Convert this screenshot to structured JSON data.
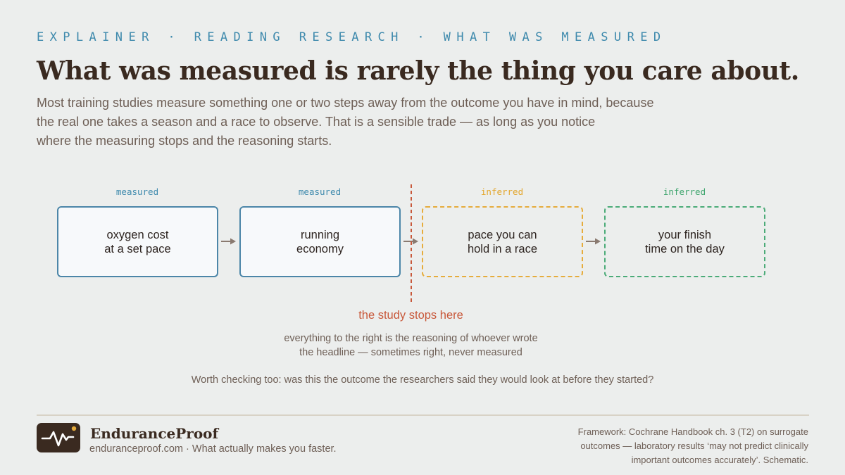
{
  "header": {
    "eyebrow": "EXPLAINER · READING RESEARCH · WHAT WAS MEASURED",
    "title": "What was measured is rarely the thing you care about.",
    "intro_lines": [
      "Most training studies measure something one or two steps away from the outcome you have in mind, because",
      "the real one takes a season and a race to observe. That is a sensible trade — as long as you notice",
      "where the measuring stops and the reasoning starts."
    ]
  },
  "diagram": {
    "nodes": [
      {
        "tag": "measured",
        "lines": [
          "oxygen cost",
          "at a set pace"
        ]
      },
      {
        "tag": "measured",
        "lines": [
          "running",
          "economy"
        ]
      },
      {
        "tag": "inferred",
        "lines": [
          "pace you can",
          "hold in a race"
        ]
      },
      {
        "tag": "inferred",
        "lines": [
          "your finish",
          "time on the day"
        ]
      }
    ],
    "cut_label": "the study stops here",
    "cut_note_lines": [
      "everything to the right is the reasoning of whoever wrote",
      "the headline — sometimes right, never measured"
    ],
    "worth_checking": "Worth checking too: was this the outcome the researchers said they would look at before they started?"
  },
  "colors": {
    "measured": "#4c86a8",
    "inferred_near": "#e6ac3c",
    "inferred_far": "#4bab78",
    "cut_line": "#c8583a",
    "arrow": "#8a7a70"
  },
  "icons": {
    "logo": "heartbeat-pulse-icon",
    "arrow": "arrow-right-icon"
  },
  "footer": {
    "brand": "EnduranceProof",
    "tagline": "enduranceproof.com · What actually makes you faster.",
    "footnote_lines": [
      "Framework: Cochrane Handbook ch. 3 (T2) on surrogate",
      "outcomes — laboratory results ‘may not predict clinically",
      "important outcomes accurately’. Schematic."
    ]
  }
}
